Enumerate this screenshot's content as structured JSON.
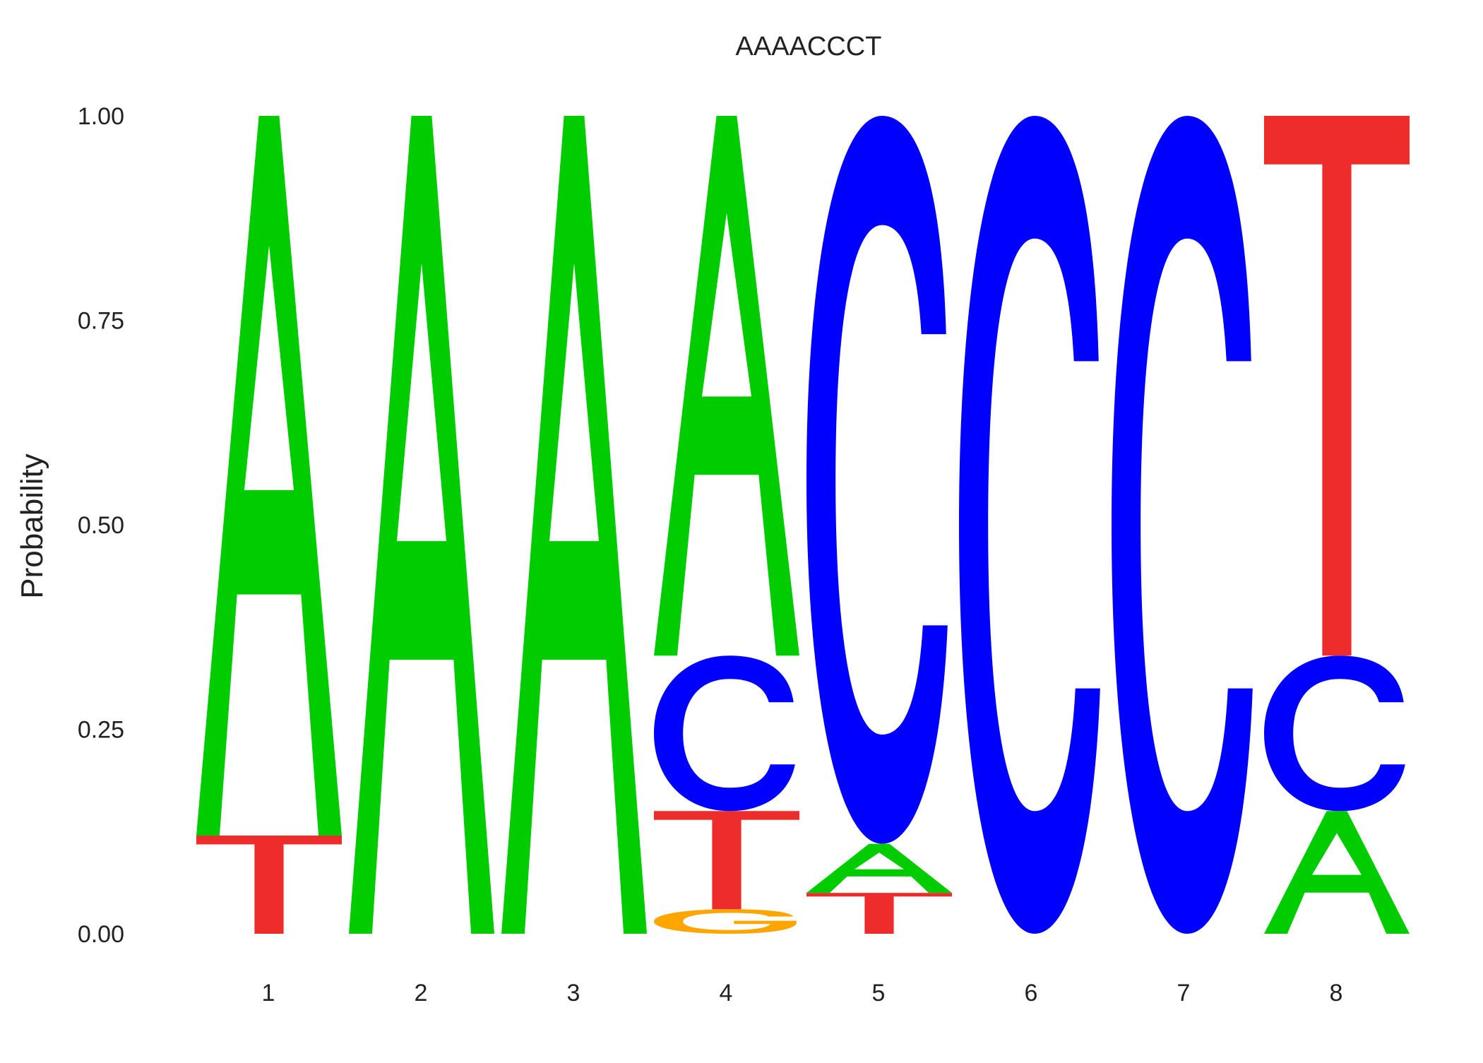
{
  "chart_data": {
    "type": "sequence-logo",
    "title": "AAAACCCT",
    "ylabel": "Probability",
    "xlabel": "",
    "ylim": [
      0,
      1
    ],
    "yticks": [
      "0.00",
      "0.25",
      "0.50",
      "0.75",
      "1.00"
    ],
    "ytick_values": [
      0,
      0.25,
      0.5,
      0.75,
      1.0
    ],
    "positions": [
      "1",
      "2",
      "3",
      "4",
      "5",
      "6",
      "7",
      "8"
    ],
    "colors": {
      "A": "#00cc00",
      "C": "#0000ff",
      "G": "#ffa500",
      "T": "#ee2c2c"
    },
    "stacks": [
      [
        {
          "base": "T",
          "prob": 0.12
        },
        {
          "base": "A",
          "prob": 0.88
        }
      ],
      [
        {
          "base": "A",
          "prob": 1.0
        }
      ],
      [
        {
          "base": "A",
          "prob": 1.0
        }
      ],
      [
        {
          "base": "G",
          "prob": 0.03
        },
        {
          "base": "T",
          "prob": 0.12
        },
        {
          "base": "C",
          "prob": 0.19
        },
        {
          "base": "A",
          "prob": 0.66
        }
      ],
      [
        {
          "base": "T",
          "prob": 0.05
        },
        {
          "base": "A",
          "prob": 0.06
        },
        {
          "base": "C",
          "prob": 0.89
        }
      ],
      [
        {
          "base": "C",
          "prob": 1.0
        }
      ],
      [
        {
          "base": "C",
          "prob": 1.0
        }
      ],
      [
        {
          "base": "A",
          "prob": 0.15
        },
        {
          "base": "C",
          "prob": 0.19
        },
        {
          "base": "T",
          "prob": 0.66
        }
      ]
    ]
  }
}
